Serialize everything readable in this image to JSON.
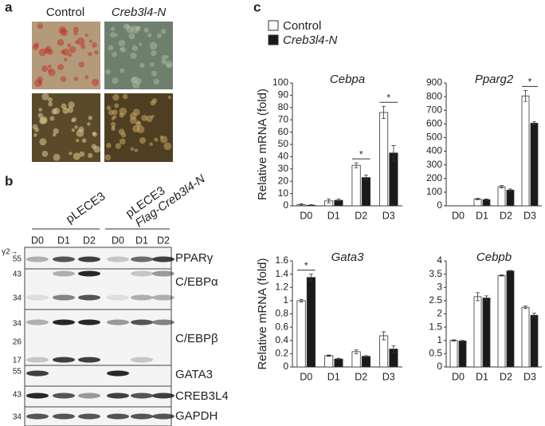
{
  "panel_a": {
    "label": "a",
    "columns": [
      "Control",
      "Creb3l4-N"
    ]
  },
  "panel_b": {
    "label": "b",
    "groups": [
      [
        "pLECE3"
      ],
      [
        "pLECE3",
        "Flag-Creb3l4-N"
      ]
    ],
    "lanes": [
      "D0",
      "D1",
      "D2",
      "D0",
      "D1",
      "D2"
    ],
    "markers": [
      "γ2→",
      "55",
      "43",
      "34",
      "34",
      "26",
      "17",
      "55",
      "43",
      "34"
    ],
    "blots": [
      "PPARγ",
      "C/EBPα",
      "C/EBPβ",
      "GATA3",
      "CREB3L4",
      "GAPDH"
    ]
  },
  "panel_c": {
    "label": "c"
  },
  "chart_data": [
    {
      "type": "bar",
      "title": "Cebpa",
      "y_label": "Relative mRNA (fold)",
      "categories": [
        "D0",
        "D1",
        "D2",
        "D3"
      ],
      "series": [
        {
          "name": "Control",
          "color": "#ffffff",
          "values": [
            1,
            4,
            33,
            76
          ],
          "errors": [
            0.8,
            1.5,
            2,
            5
          ]
        },
        {
          "name": "Creb3l4-N",
          "color": "#1a1a1a",
          "values": [
            0.5,
            4.5,
            23,
            43
          ],
          "errors": [
            0.4,
            1,
            2,
            6
          ]
        }
      ],
      "annotations": [
        {
          "text": "*",
          "category": "D2"
        },
        {
          "text": "*",
          "category": "D3"
        }
      ],
      "ylim": [
        0,
        100
      ],
      "yticks": [
        0,
        10,
        20,
        30,
        40,
        50,
        60,
        70,
        80,
        90,
        100
      ]
    },
    {
      "type": "bar",
      "title": "Pparg2",
      "categories": [
        "D0",
        "D1",
        "D2",
        "D3"
      ],
      "series": [
        {
          "name": "Control",
          "color": "#ffffff",
          "values": [
            0,
            50,
            140,
            805
          ],
          "errors": [
            0,
            5,
            8,
            40
          ]
        },
        {
          "name": "Creb3l4-N",
          "color": "#1a1a1a",
          "values": [
            0,
            45,
            115,
            605
          ],
          "errors": [
            0,
            5,
            8,
            10
          ]
        }
      ],
      "annotations": [
        {
          "text": "*",
          "category": "D3"
        }
      ],
      "ylim": [
        0,
        900
      ],
      "yticks": [
        0,
        100,
        200,
        300,
        400,
        500,
        600,
        700,
        800,
        900
      ]
    },
    {
      "type": "bar",
      "title": "Gata3",
      "y_label": "Relative mRNA (fold)",
      "categories": [
        "D0",
        "D1",
        "D2",
        "D3"
      ],
      "series": [
        {
          "name": "Control",
          "color": "#ffffff",
          "values": [
            1.0,
            0.17,
            0.23,
            0.47
          ],
          "errors": [
            0.02,
            0.01,
            0.03,
            0.06
          ]
        },
        {
          "name": "Creb3l4-N",
          "color": "#1a1a1a",
          "values": [
            1.35,
            0.12,
            0.16,
            0.27
          ],
          "errors": [
            0.05,
            0.01,
            0.01,
            0.05
          ]
        }
      ],
      "annotations": [
        {
          "text": "*",
          "category": "D0"
        }
      ],
      "ylim": [
        0,
        1.6
      ],
      "yticks": [
        0,
        0.2,
        0.4,
        0.6,
        0.8,
        1,
        1.2,
        1.4,
        1.6
      ]
    },
    {
      "type": "bar",
      "title": "Cebpb",
      "categories": [
        "D0",
        "D1",
        "D2",
        "D3"
      ],
      "series": [
        {
          "name": "Control",
          "color": "#ffffff",
          "values": [
            1,
            2.65,
            3.45,
            2.25
          ],
          "errors": [
            0.02,
            0.15,
            0.02,
            0.05
          ]
        },
        {
          "name": "Creb3l4-N",
          "color": "#1a1a1a",
          "values": [
            0.98,
            2.6,
            3.62,
            1.95
          ],
          "errors": [
            0.02,
            0.08,
            0.02,
            0.08
          ]
        }
      ],
      "ylim": [
        0,
        4
      ],
      "yticks": [
        0,
        0.5,
        1,
        1.5,
        2,
        2.5,
        3,
        3.5,
        4
      ]
    }
  ]
}
